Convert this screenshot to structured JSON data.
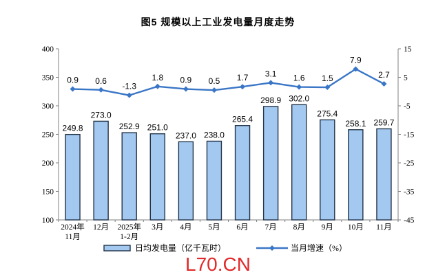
{
  "title": "图5  规模以上工业发电量月度走势",
  "watermark": "L70.CN",
  "legend": {
    "bar_label": "日均发电量（亿千瓦时）",
    "line_label": "当月增速（%）"
  },
  "colors": {
    "bar_fill": "#a3c9f1",
    "bar_stroke": "#233447",
    "line": "#3a76c6",
    "axis": "#7f7f7f",
    "text": "#000000",
    "watermark": "#e02a2a"
  },
  "chart_data": {
    "type": "bar+line",
    "title": "图5  规模以上工业发电量月度走势",
    "categories": [
      "2024年\n11月",
      "12月",
      "2025年\n1-2月",
      "3月",
      "4月",
      "5月",
      "6月",
      "7月",
      "8月",
      "9月",
      "10月",
      "11月"
    ],
    "series": [
      {
        "name": "日均发电量（亿千瓦时）",
        "type": "bar",
        "axis": "left",
        "values": [
          249.8,
          273.0,
          252.9,
          251.0,
          237.0,
          238.0,
          265.4,
          298.9,
          302.0,
          275.4,
          258.1,
          259.7
        ]
      },
      {
        "name": "当月增速（%）",
        "type": "line",
        "axis": "right",
        "values": [
          0.9,
          0.6,
          -1.3,
          1.8,
          0.9,
          0.5,
          1.7,
          3.1,
          1.6,
          1.5,
          7.9,
          2.7
        ]
      }
    ],
    "left_axis": {
      "min": 100,
      "max": 400,
      "step": 50,
      "ticks": [
        400,
        350,
        300,
        250,
        200,
        150,
        100
      ]
    },
    "right_axis": {
      "min": -45,
      "max": 15,
      "step": 10,
      "ticks": [
        15,
        5,
        -5,
        -15,
        -25,
        -35,
        -45
      ]
    },
    "grid": false,
    "legend_position": "bottom"
  }
}
